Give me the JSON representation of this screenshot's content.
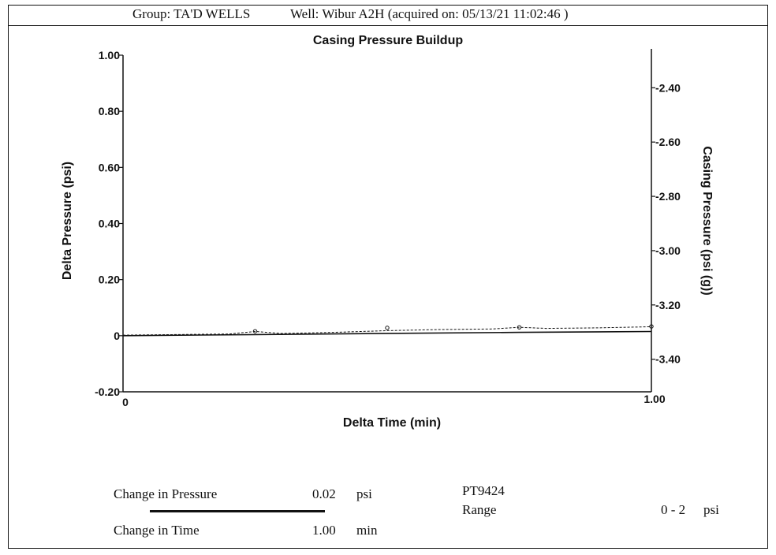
{
  "header": {
    "group": "Group: TA'D WELLS",
    "well": "Well: Wibur A2H (acquired on: 05/13/21 11:02:46 )"
  },
  "chart_data": {
    "type": "line",
    "title": "Casing Pressure Buildup",
    "xlabel": "Delta Time (min)",
    "ylabel": "Delta Pressure (psi)",
    "y2label": "Casing Pressure (psi (g))",
    "xlim": [
      0,
      1.0
    ],
    "ylim": [
      -0.2,
      1.0
    ],
    "y2lim": [
      -3.52,
      -2.28
    ],
    "x_ticks": [
      "0",
      "1.00"
    ],
    "y_ticks": [
      {
        "value": 1.0,
        "label": "1.00"
      },
      {
        "value": 0.8,
        "label": "0.80"
      },
      {
        "value": 0.6,
        "label": "0.60"
      },
      {
        "value": 0.4,
        "label": "0.40"
      },
      {
        "value": 0.2,
        "label": "0.20"
      },
      {
        "value": 0,
        "label": "0"
      },
      {
        "value": -0.2,
        "label": "-0.20"
      }
    ],
    "y2_ticks": [
      {
        "value": -2.4,
        "label": "-2.40"
      },
      {
        "value": -2.6,
        "label": "-2.60"
      },
      {
        "value": -2.8,
        "label": "-2.80"
      },
      {
        "value": -3.0,
        "label": "-3.00"
      },
      {
        "value": -3.2,
        "label": "-3.20"
      },
      {
        "value": -3.4,
        "label": "-3.40"
      }
    ],
    "series": [
      {
        "axis": "left",
        "style": "solid",
        "x": [
          0,
          0.25,
          0.5,
          0.75,
          1.0
        ],
        "values": [
          0,
          0.004,
          0.008,
          0.012,
          0.015
        ]
      },
      {
        "axis": "left",
        "style": "dashed",
        "x": [
          0,
          0.1,
          0.2,
          0.25,
          0.3,
          0.4,
          0.5,
          0.6,
          0.7,
          0.75,
          0.8,
          0.9,
          1.0
        ],
        "values": [
          0.002,
          0.004,
          0.006,
          0.015,
          0.008,
          0.012,
          0.018,
          0.022,
          0.024,
          0.03,
          0.026,
          0.028,
          0.032
        ]
      }
    ],
    "markers": [
      {
        "x": 0.25,
        "y": 0.016
      },
      {
        "x": 0.5,
        "y": 0.028
      },
      {
        "x": 0.75,
        "y": 0.03
      },
      {
        "x": 1.0,
        "y": 0.033
      }
    ],
    "grid": false
  },
  "footer": {
    "change_pressure_label": "Change in Pressure",
    "change_pressure_value": "0.02",
    "change_pressure_unit": "psi",
    "change_time_label": "Change in Time",
    "change_time_value": "1.00",
    "change_time_unit": "min",
    "sensor": "PT9424",
    "range_label": "Range",
    "range_value": "0 - 2",
    "range_unit": "psi"
  }
}
